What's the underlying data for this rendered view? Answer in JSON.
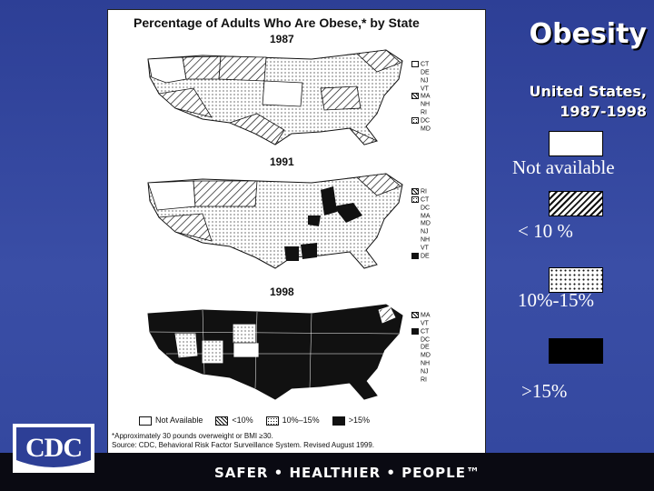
{
  "figure": {
    "title": "Percentage of Adults Who Are Obese,* by State",
    "years": [
      "1987",
      "1991",
      "1998"
    ],
    "small_state_legends": [
      [
        "CT",
        "DE",
        "NJ",
        "VT",
        "MA",
        "NH",
        "RI",
        "DC",
        "MD"
      ],
      [
        "RI",
        "CT",
        "DC",
        "MA",
        "MD",
        "NJ",
        "NH",
        "VT",
        "DE"
      ],
      [
        "MA",
        "VT",
        "CT",
        "DC",
        "DE",
        "MD",
        "NH",
        "NJ",
        "RI"
      ]
    ],
    "legend": [
      "Not Available",
      "<10%",
      "10%–15%",
      ">15%"
    ],
    "note_line1": "*Approximately 30 pounds overweight or BMI ≥30.",
    "note_line2": "Source: CDC, Behavioral Risk Factor Surveillance System. Revised August 1999."
  },
  "slide": {
    "title": "Obesity",
    "subtitle_line1": "United States,",
    "subtitle_line2": "1987-1998",
    "legend": {
      "not_available": "Not available",
      "lt10": "< 10 %",
      "mid": "10%-15%",
      "gt15": ">15%"
    }
  },
  "footer": {
    "logo_text": "CDC",
    "tagline": "SAFER • HEALTHIER • PEOPLE™"
  },
  "colors": {
    "background": "#3a4ea6",
    "text": "#ffffff",
    "footer": "#0a0a12"
  }
}
